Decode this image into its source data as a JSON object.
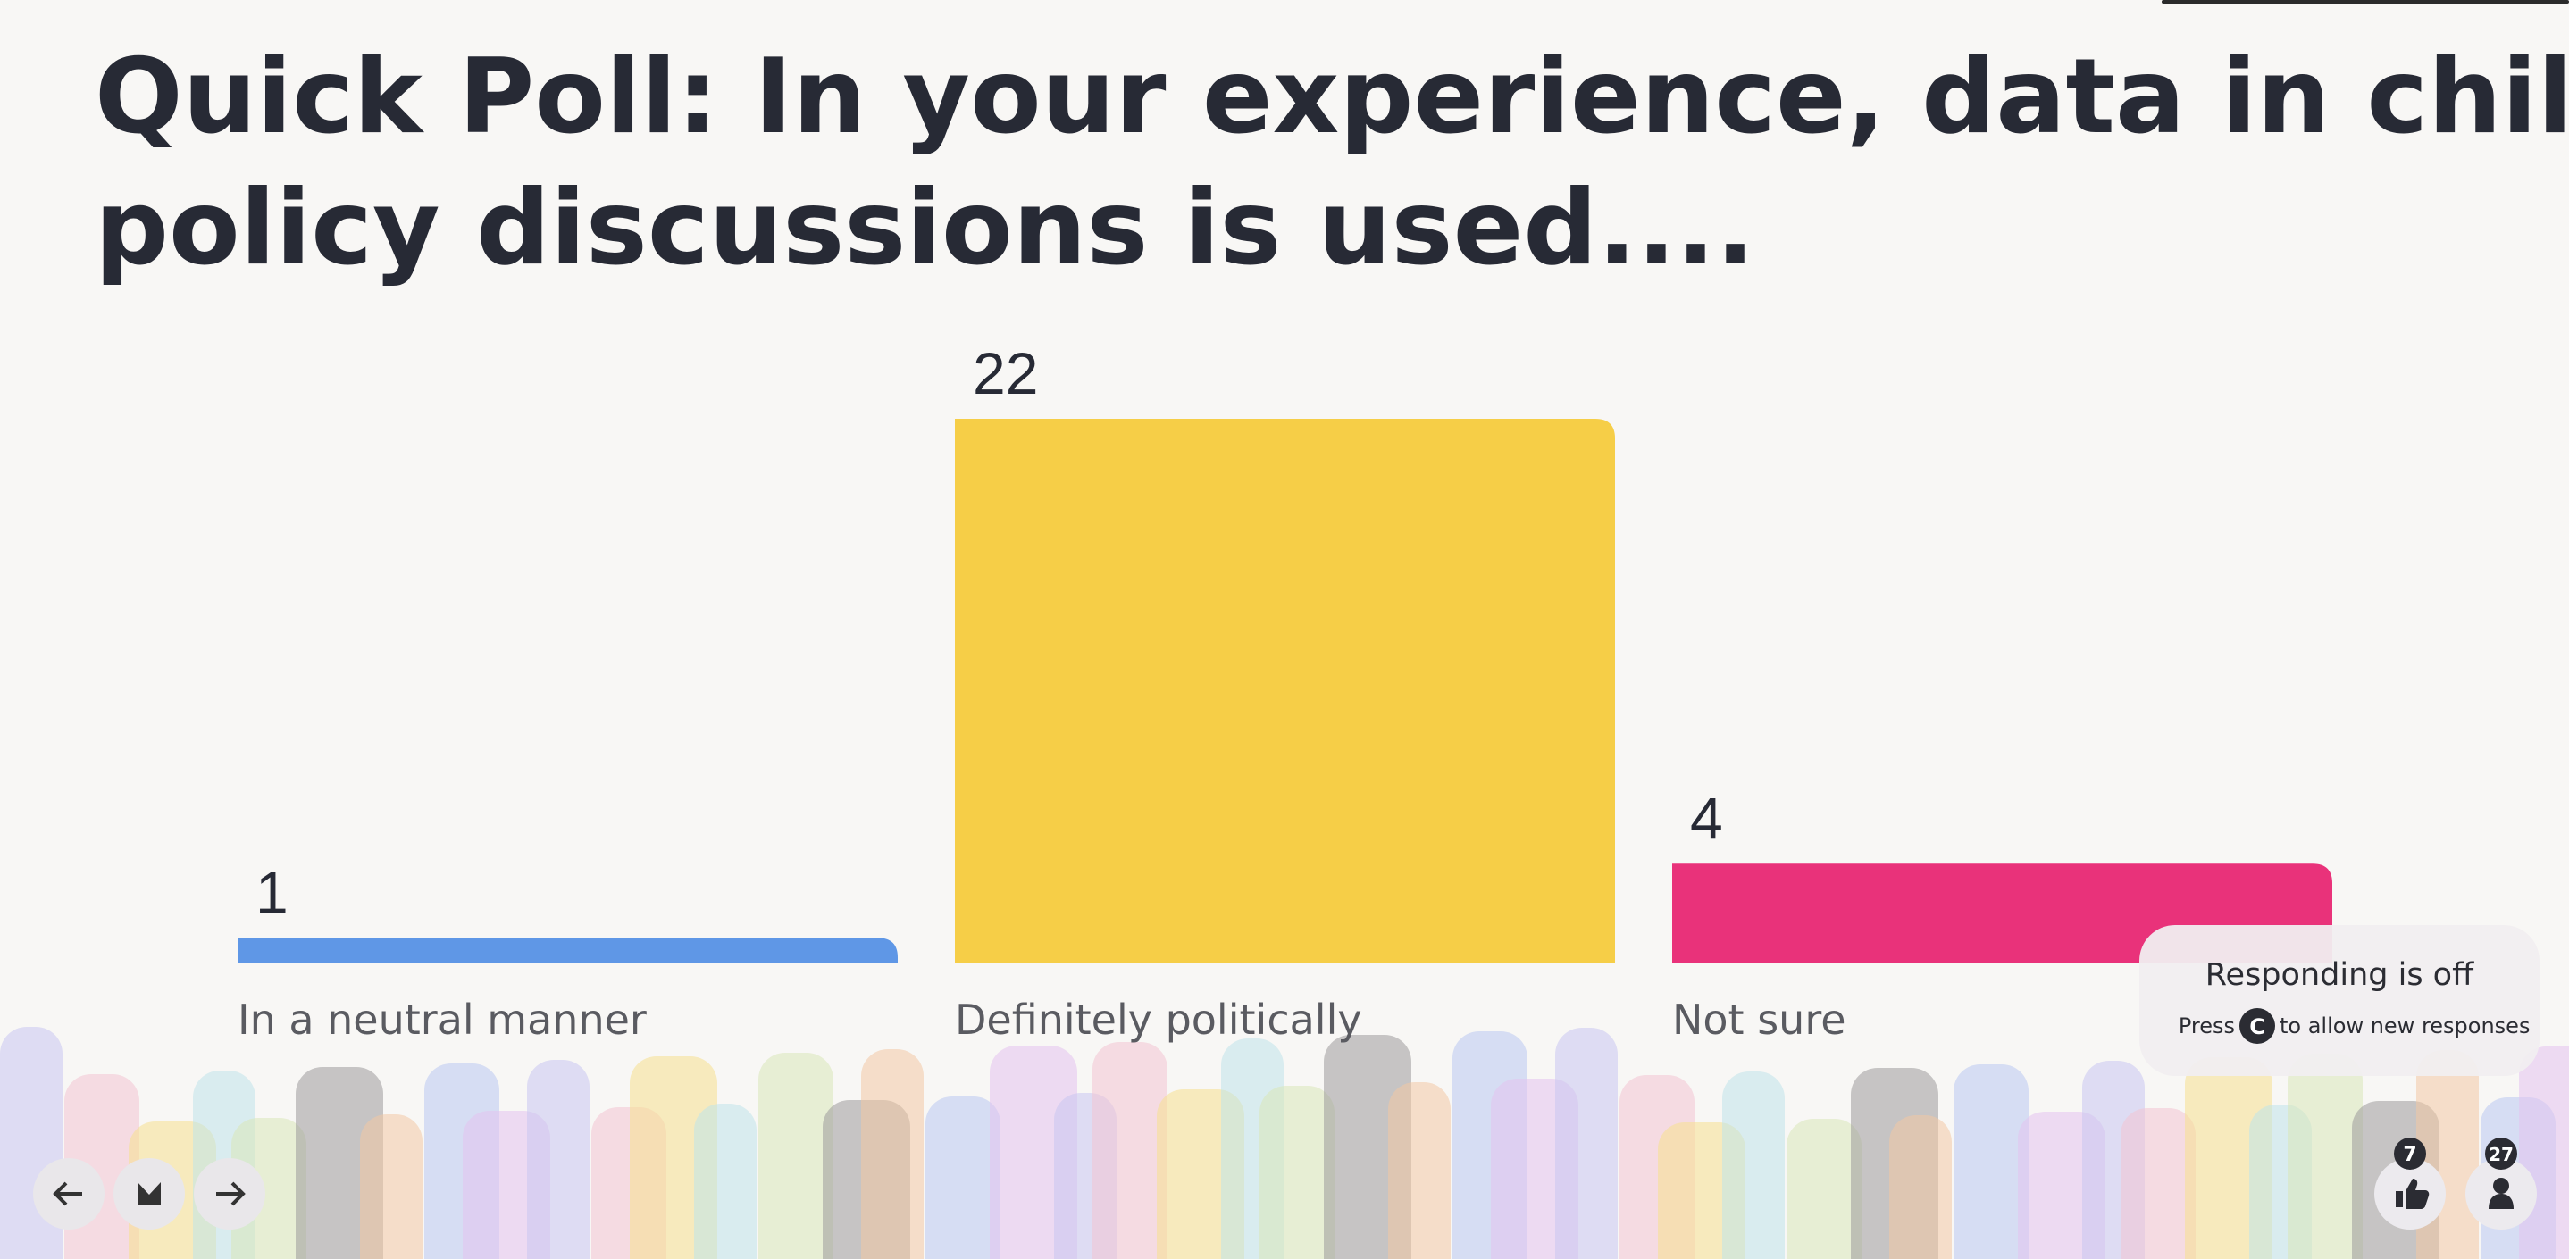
{
  "chart_data": {
    "type": "bar",
    "title": "Quick Poll: In your experience, data in child policy discussions is used....",
    "categories": [
      "In a neutral manner",
      "Definitely politically",
      "Not sure"
    ],
    "values": [
      1,
      22,
      4
    ],
    "colors": [
      "#5f97e6",
      "#f6ce47",
      "#e9327a"
    ]
  },
  "status": {
    "title": "Responding is off",
    "hint_before": "Press",
    "key": "C",
    "hint_after": "to allow new responses"
  },
  "reactions": {
    "likes": 7,
    "participants": 27
  }
}
